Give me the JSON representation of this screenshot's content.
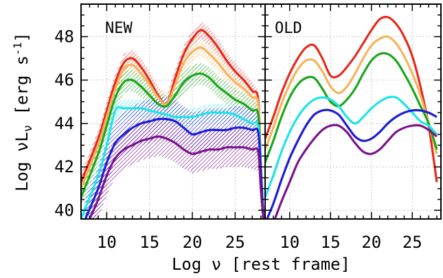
{
  "chart_data": {
    "type": "line",
    "xlabel": "Log ν [rest frame]",
    "ylabel": "Log νL",
    "ylabel_sub": "ν",
    "ylabel_units": "[erg s",
    "ylabel_units_sup": "-1",
    "ylabel_units_close": "]",
    "ylim": [
      39.6,
      49.5
    ],
    "y_ticks": [
      40,
      42,
      44,
      46,
      48
    ],
    "grid": true,
    "panels": [
      {
        "label": "NEW",
        "xlim": [
          7,
          28.5
        ],
        "x_ticks": [
          10,
          15,
          20,
          25
        ],
        "series": [
          {
            "color": "#e8291c",
            "x": [
              7,
              9,
              10,
              11,
              12,
              13,
              14,
              15,
              16,
              17,
              18,
              19,
              20,
              21,
              22,
              23,
              24,
              25,
              26,
              27,
              27.7,
              28,
              28.3
            ],
            "y": [
              41.3,
              43.3,
              44.6,
              45.9,
              46.8,
              47.0,
              46.6,
              46.0,
              45.3,
              44.9,
              46.1,
              47.2,
              47.9,
              48.3,
              48.0,
              47.5,
              46.9,
              46.4,
              46.0,
              45.5,
              45.1,
              42.0,
              39.6
            ],
            "band": 0.4
          },
          {
            "color": "#f5b35b",
            "x": [
              7,
              9,
              10,
              11,
              12,
              13,
              14,
              15,
              16,
              17,
              18,
              19,
              20,
              21,
              22,
              23,
              24,
              25,
              26,
              27,
              27.7,
              28,
              28.3
            ],
            "y": [
              41.0,
              43.0,
              44.3,
              45.6,
              46.5,
              46.7,
              46.3,
              45.8,
              45.2,
              44.9,
              45.8,
              46.8,
              47.3,
              47.5,
              47.2,
              46.8,
              46.3,
              45.9,
              45.6,
              45.2,
              44.9,
              42.0,
              39.6
            ],
            "band": 0.4
          },
          {
            "color": "#1aa61a",
            "x": [
              7,
              9,
              10,
              11,
              12,
              13,
              14,
              15,
              16,
              17,
              18,
              19,
              20,
              21,
              22,
              23,
              24,
              25,
              26,
              27,
              27.7,
              28,
              28.3
            ],
            "y": [
              40.6,
              42.6,
              43.9,
              45.2,
              45.9,
              46.0,
              45.7,
              45.3,
              44.9,
              44.8,
              45.3,
              45.9,
              46.2,
              46.3,
              46.1,
              45.7,
              45.4,
              45.1,
              44.9,
              44.6,
              44.4,
              42.0,
              39.6
            ],
            "band": 0.5
          },
          {
            "color": "#1ee3e8",
            "x": [
              7,
              9,
              10,
              11,
              12,
              13,
              14,
              15,
              16,
              17,
              18,
              19,
              20,
              21,
              22,
              23,
              24,
              25,
              26,
              27,
              27.7,
              28,
              28.3
            ],
            "y": [
              39.6,
              41.6,
              43.0,
              44.6,
              44.7,
              44.7,
              44.7,
              44.6,
              44.5,
              44.4,
              44.3,
              44.3,
              44.3,
              44.4,
              44.5,
              44.5,
              44.5,
              44.4,
              44.2,
              44.0,
              43.9,
              42.0,
              39.6
            ],
            "band": 0.4
          },
          {
            "color": "#1c1cd6",
            "x": [
              7.5,
              9,
              10,
              11,
              12,
              13,
              14,
              15,
              16,
              17,
              18,
              19,
              20,
              21,
              22,
              23,
              24,
              25,
              26,
              27,
              27.7,
              28,
              28.3
            ],
            "y": [
              39.6,
              41.0,
              42.2,
              43.1,
              43.5,
              43.8,
              44.0,
              44.1,
              44.2,
              44.2,
              44.1,
              43.8,
              43.5,
              43.6,
              43.7,
              43.7,
              43.7,
              43.8,
              43.8,
              43.7,
              43.6,
              41.8,
              39.6
            ],
            "band": 1.0
          },
          {
            "color": "#7b128a",
            "x": [
              8,
              9,
              10,
              11,
              12,
              13,
              14,
              15,
              16,
              17,
              18,
              19,
              20,
              21,
              22,
              23,
              24,
              25,
              26,
              27,
              27.7,
              28,
              28.3
            ],
            "y": [
              39.6,
              40.5,
              41.6,
              42.4,
              42.8,
              43.0,
              43.2,
              43.3,
              43.4,
              43.3,
              43.1,
              42.8,
              42.6,
              42.7,
              42.8,
              42.8,
              42.9,
              42.9,
              42.9,
              42.8,
              42.7,
              41.0,
              39.6
            ],
            "band": 0.9
          }
        ]
      },
      {
        "label": "OLD",
        "xlim": [
          7,
          28.5
        ],
        "x_ticks": [
          10,
          15,
          20,
          25
        ],
        "series": [
          {
            "color": "#e8291c",
            "x": [
              7,
              8,
              9,
              10,
              11,
              12,
              13,
              14,
              15,
              16,
              17,
              18,
              19,
              20,
              21,
              22,
              23,
              24,
              25,
              26,
              27,
              28
            ],
            "y": [
              43.3,
              44.3,
              45.4,
              46.3,
              47.0,
              47.5,
              47.6,
              47.0,
              46.2,
              46.2,
              46.6,
              47.1,
              47.7,
              48.3,
              48.8,
              48.9,
              48.6,
              48.0,
              47.1,
              45.7,
              43.9,
              41.3
            ]
          },
          {
            "color": "#f5b35b",
            "x": [
              7,
              8,
              9,
              10,
              11,
              12,
              13,
              14,
              15,
              16,
              17,
              18,
              19,
              20,
              21,
              22,
              23,
              24,
              25,
              26,
              27,
              28
            ],
            "y": [
              42.8,
              43.8,
              44.9,
              45.8,
              46.5,
              46.9,
              46.9,
              46.4,
              45.7,
              45.4,
              45.7,
              46.3,
              47.0,
              47.6,
              47.9,
              48.0,
              47.7,
              47.1,
              46.3,
              45.3,
              44.0,
              42.6
            ]
          },
          {
            "color": "#1aa61a",
            "x": [
              7,
              8,
              9,
              10,
              11,
              12,
              13,
              14,
              15,
              16,
              17,
              18,
              19,
              20,
              21,
              22,
              23,
              24,
              25,
              26,
              27,
              28
            ],
            "y": [
              42.2,
              43.2,
              44.3,
              45.2,
              45.8,
              46.1,
              46.1,
              45.6,
              45.0,
              44.8,
              45.1,
              45.6,
              46.3,
              46.9,
              47.2,
              47.2,
              46.9,
              46.3,
              45.6,
              44.8,
              44.0,
              42.8
            ]
          },
          {
            "color": "#1ee3e8",
            "x": [
              7,
              8,
              9,
              10,
              11,
              12,
              13,
              14,
              15,
              16,
              17,
              18,
              19,
              20,
              21,
              22,
              23,
              24,
              25,
              26,
              27,
              28
            ],
            "y": [
              40.6,
              41.6,
              42.7,
              43.6,
              44.3,
              44.8,
              45.1,
              45.2,
              45.1,
              44.8,
              44.3,
              44.0,
              44.3,
              44.7,
              45.0,
              45.2,
              45.2,
              44.9,
              44.5,
              44.1,
              43.9,
              43.5
            ]
          },
          {
            "color": "#1c1cd6",
            "x": [
              7,
              8,
              9,
              10,
              11,
              12,
              13,
              14,
              15,
              16,
              17,
              18,
              19,
              20,
              21,
              22,
              23,
              24,
              25,
              26,
              27,
              28
            ],
            "y": [
              39.4,
              40.3,
              41.4,
              42.4,
              43.2,
              43.9,
              44.4,
              44.6,
              44.6,
              44.4,
              43.9,
              43.4,
              43.2,
              43.3,
              43.6,
              44.0,
              44.3,
              44.5,
              44.6,
              44.6,
              44.5,
              44.3
            ]
          },
          {
            "color": "#7b128a",
            "x": [
              8,
              9,
              10,
              11,
              12,
              13,
              14,
              15,
              16,
              17,
              18,
              19,
              20,
              21,
              22,
              23,
              24,
              25,
              26,
              27,
              28
            ],
            "y": [
              39.4,
              40.4,
              41.3,
              42.2,
              42.8,
              43.3,
              43.7,
              43.9,
              43.9,
              43.6,
              43.1,
              42.7,
              42.6,
              42.8,
              43.2,
              43.6,
              43.8,
              43.9,
              43.9,
              43.7,
              43.4
            ]
          }
        ]
      }
    ]
  }
}
